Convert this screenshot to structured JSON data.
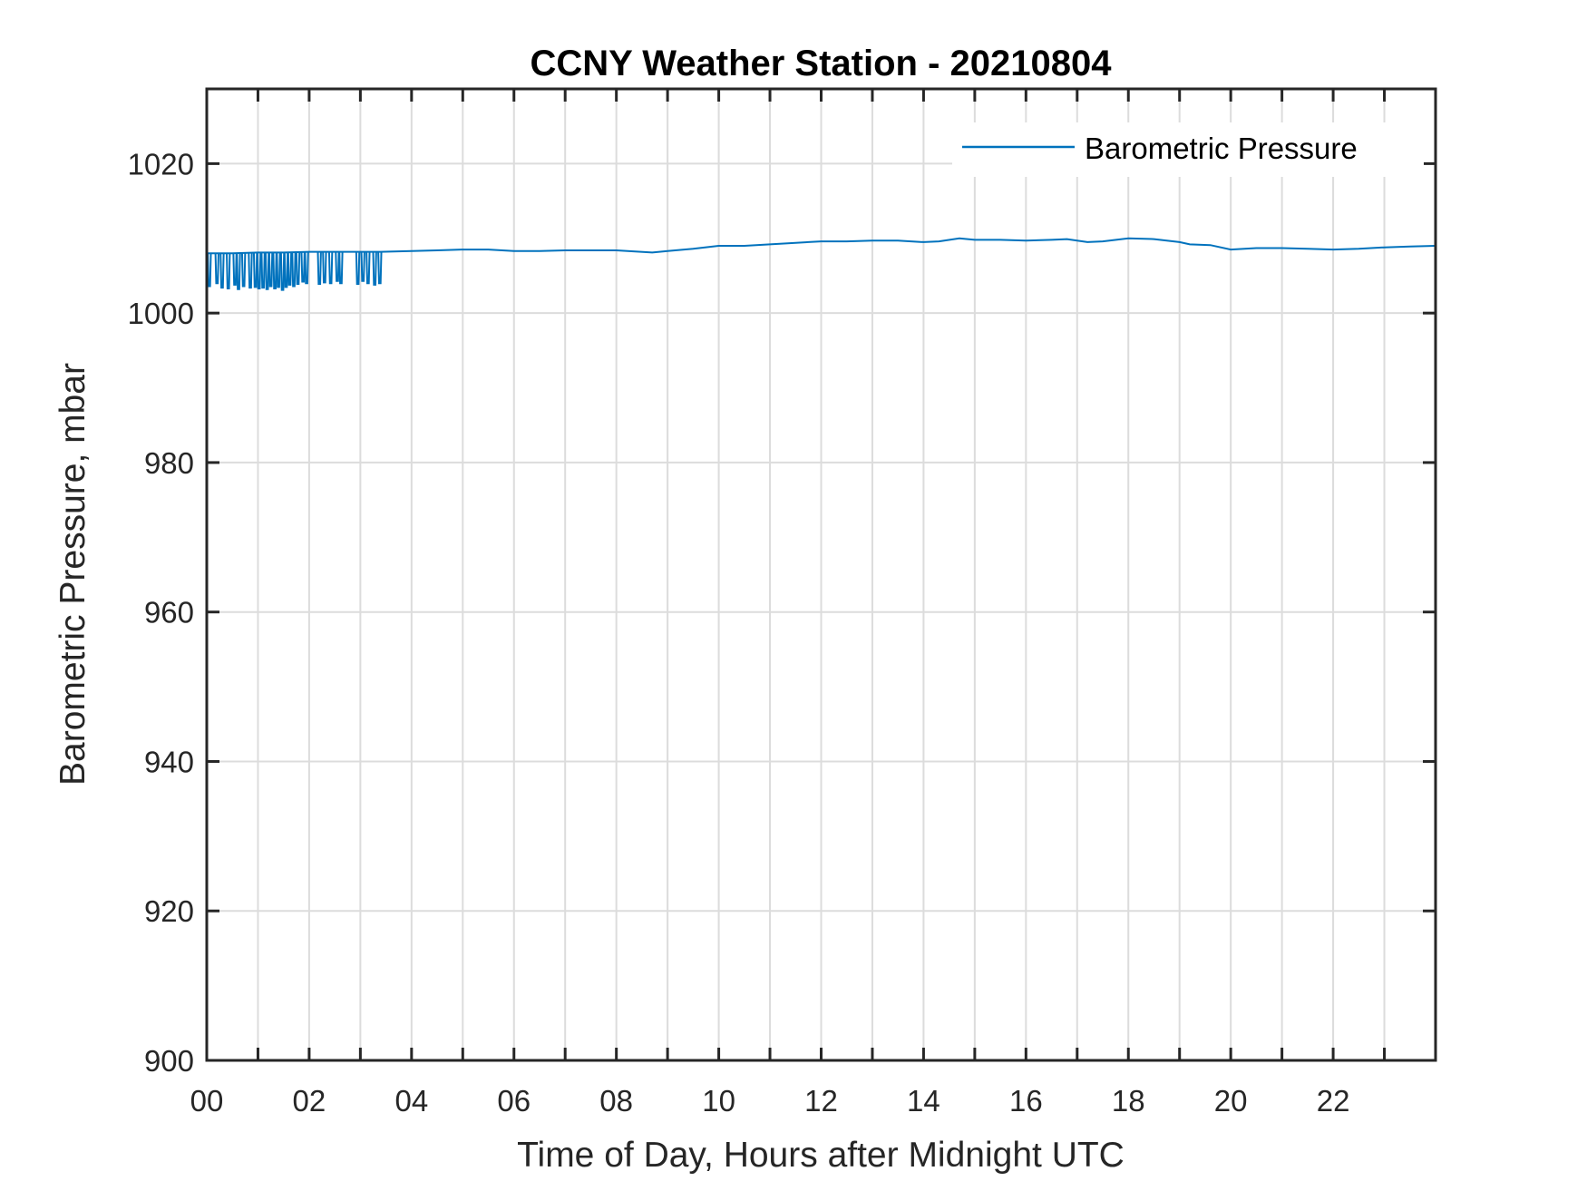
{
  "chart_data": {
    "type": "line",
    "title": "CCNY Weather Station - 20210804",
    "xlabel": "Time of Day, Hours after Midnight UTC",
    "ylabel": "Barometric Pressure, mbar",
    "xlim": [
      0,
      24
    ],
    "ylim": [
      900,
      1030
    ],
    "xticks": [
      0,
      2,
      4,
      6,
      8,
      10,
      12,
      14,
      16,
      18,
      20,
      22
    ],
    "xtick_labels": [
      "00",
      "02",
      "04",
      "06",
      "08",
      "10",
      "12",
      "14",
      "16",
      "18",
      "20",
      "22"
    ],
    "yticks": [
      900,
      920,
      940,
      960,
      980,
      1000,
      1020
    ],
    "ytick_labels": [
      "900",
      "920",
      "940",
      "960",
      "980",
      "1000",
      "1020"
    ],
    "grid": true,
    "legend_placement": "top-right",
    "series": [
      {
        "name": "Barometric Pressure",
        "color": "#0072BD",
        "x": [
          0,
          0.5,
          1,
          1.5,
          2,
          2.5,
          3,
          3.4,
          4,
          4.5,
          5,
          5.5,
          6,
          6.5,
          7,
          7.5,
          8,
          8.7,
          9,
          9.5,
          10,
          10.5,
          11,
          11.5,
          12,
          12.5,
          13,
          13.5,
          14,
          14.3,
          14.7,
          15,
          15.5,
          16,
          16.5,
          16.8,
          17.2,
          17.5,
          18,
          18.5,
          19,
          19.2,
          19.6,
          20,
          20.5,
          21,
          21.5,
          22,
          22.5,
          23,
          23.5,
          24
        ],
        "y": [
          1008,
          1008,
          1008.1,
          1008.1,
          1008.2,
          1008.2,
          1008.2,
          1008.2,
          1008.3,
          1008.4,
          1008.5,
          1008.5,
          1008.3,
          1008.3,
          1008.4,
          1008.4,
          1008.4,
          1008.1,
          1008.3,
          1008.6,
          1009,
          1009,
          1009.2,
          1009.4,
          1009.6,
          1009.6,
          1009.7,
          1009.7,
          1009.5,
          1009.6,
          1010,
          1009.8,
          1009.8,
          1009.7,
          1009.8,
          1009.9,
          1009.5,
          1009.6,
          1010,
          1009.9,
          1009.5,
          1009.2,
          1009.1,
          1008.5,
          1008.7,
          1008.7,
          1008.6,
          1008.5,
          1008.6,
          1008.8,
          1008.9,
          1009
        ],
        "dropouts": [
          [
            0.05,
            1003.6
          ],
          [
            0.2,
            1004
          ],
          [
            0.3,
            1003.4
          ],
          [
            0.42,
            1003.3
          ],
          [
            0.55,
            1003.8
          ],
          [
            0.62,
            1003.2
          ],
          [
            0.72,
            1003.6
          ],
          [
            0.85,
            1003.4
          ],
          [
            0.95,
            1003.5
          ],
          [
            1.02,
            1003.3
          ],
          [
            1.1,
            1003.4
          ],
          [
            1.18,
            1003.2
          ],
          [
            1.25,
            1003.6
          ],
          [
            1.33,
            1003.3
          ],
          [
            1.4,
            1003.5
          ],
          [
            1.48,
            1003.1
          ],
          [
            1.55,
            1003.5
          ],
          [
            1.62,
            1003.8
          ],
          [
            1.7,
            1003.6
          ],
          [
            1.78,
            1003.9
          ],
          [
            1.88,
            1004.2
          ],
          [
            1.95,
            1004
          ],
          [
            2.2,
            1003.9
          ],
          [
            2.3,
            1004.1
          ],
          [
            2.42,
            1004
          ],
          [
            2.55,
            1004.3
          ],
          [
            2.62,
            1004
          ],
          [
            2.95,
            1003.9
          ],
          [
            3.05,
            1004.3
          ],
          [
            3.15,
            1004
          ],
          [
            3.28,
            1003.8
          ],
          [
            3.38,
            1004
          ]
        ]
      }
    ]
  }
}
